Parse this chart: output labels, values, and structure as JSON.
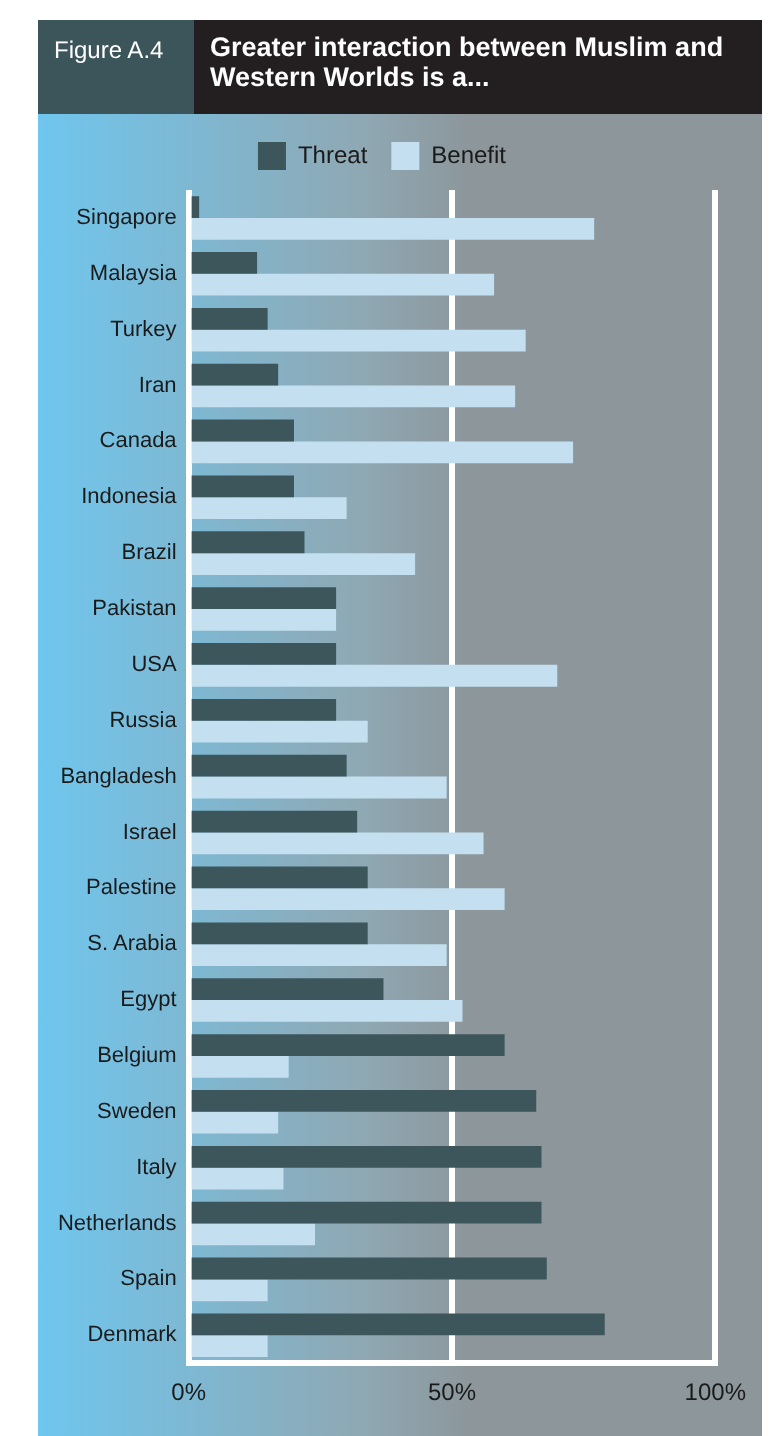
{
  "chart_data": {
    "type": "bar",
    "title": "Greater interaction between Muslim and Western Worlds is a...",
    "subtitle": "Figure A.4",
    "orientation": "horizontal",
    "categories": [
      "Singapore",
      "Malaysia",
      "Turkey",
      "Iran",
      "Canada",
      "Indonesia",
      "Brazil",
      "Pakistan",
      "USA",
      "Russia",
      "Bangladesh",
      "Israel",
      "Palestine",
      "S. Arabia",
      "Egypt",
      "Belgium",
      "Sweden",
      "Italy",
      "Netherlands",
      "Spain",
      "Denmark"
    ],
    "series": [
      {
        "name": "Threat",
        "color": "#3d565b",
        "values": [
          2,
          13,
          15,
          17,
          20,
          20,
          22,
          28,
          28,
          28,
          30,
          32,
          34,
          34,
          37,
          60,
          66,
          67,
          67,
          68,
          79
        ]
      },
      {
        "name": "Benefit",
        "color": "#c3dff0",
        "values": [
          77,
          58,
          64,
          62,
          73,
          30,
          43,
          28,
          70,
          34,
          49,
          56,
          60,
          49,
          52,
          19,
          17,
          18,
          24,
          15,
          15
        ]
      }
    ],
    "xlim": [
      0,
      100
    ],
    "xticks": [
      {
        "value": 0,
        "label": "0%"
      },
      {
        "value": 50,
        "label": "50%"
      },
      {
        "value": 100,
        "label": "100%"
      }
    ],
    "grid": "x",
    "legend": "top"
  }
}
